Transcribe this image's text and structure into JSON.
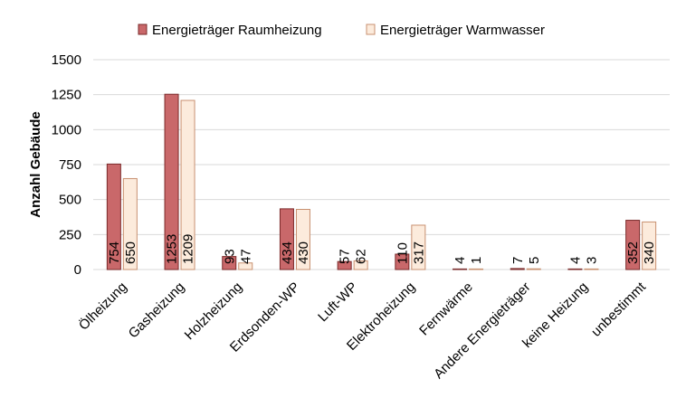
{
  "chart_data": {
    "type": "bar",
    "title": "",
    "xlabel": "",
    "ylabel": "Anzahl Gebäude",
    "ylim": [
      0,
      1500
    ],
    "yticks": [
      0,
      250,
      500,
      750,
      1000,
      1250,
      1500
    ],
    "grid": true,
    "legend_position": "top",
    "categories": [
      "Ölheizung",
      "Gasheizung",
      "Holzheizung",
      "Erdsonden-WP",
      "Luft-WP",
      "Elektroheizung",
      "Fernwärme",
      "Andere Energieträger",
      "keine Heizung",
      "unbestimmt"
    ],
    "series": [
      {
        "name": "Energieträger Raumheizung",
        "values": [
          754,
          1253,
          93,
          434,
          57,
          110,
          4,
          7,
          4,
          352
        ],
        "color": "#C9686A"
      },
      {
        "name": "Energieträger Warmwasser",
        "values": [
          650,
          1209,
          47,
          430,
          62,
          317,
          1,
          5,
          3,
          340
        ],
        "color": "#FCEBDC"
      }
    ]
  }
}
